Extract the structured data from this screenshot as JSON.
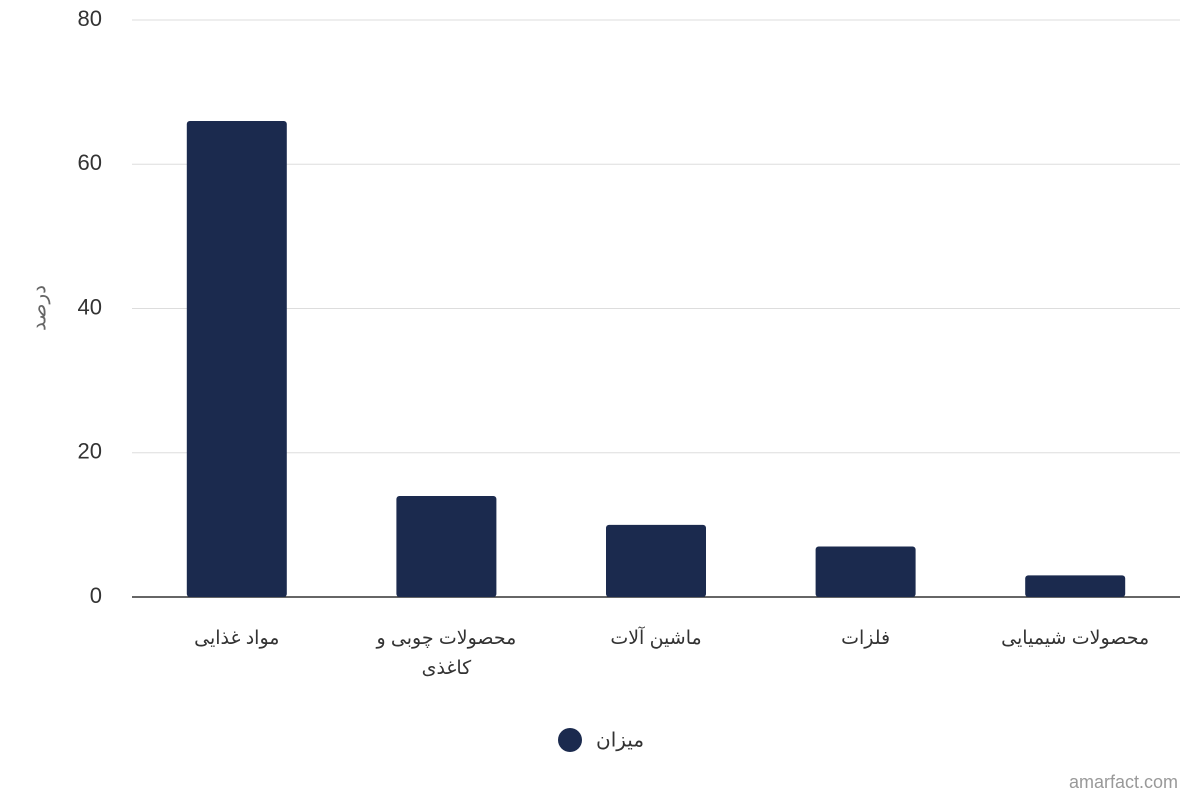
{
  "chart_data": {
    "type": "bar",
    "y_label": "درصد",
    "categories": [
      "مواد غذایی",
      "محصولات چوبی و کاغذی",
      "ماشین آلات",
      "فلزات",
      "محصولات شیمیایی"
    ],
    "series": [
      {
        "name": "میزان",
        "color": "#1b2a4e",
        "values": [
          66,
          14,
          10,
          7,
          3
        ]
      }
    ],
    "ylim": [
      0,
      80
    ],
    "yticks": [
      0,
      20,
      40,
      60,
      80
    ],
    "grid": true,
    "source": "amarfact.com"
  }
}
